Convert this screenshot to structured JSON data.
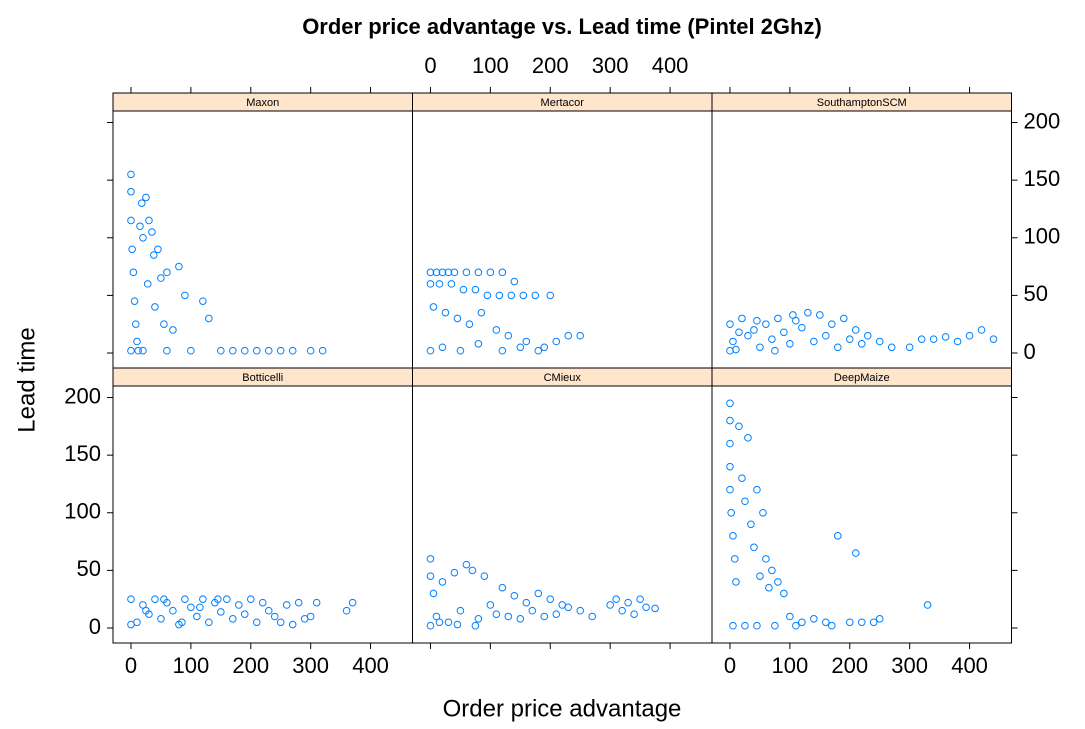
{
  "chart_data": {
    "type": "scatter",
    "title": "Order price advantage vs. Lead time (Pintel 2Ghz)",
    "x_label": "Order price advantage",
    "y_label": "Lead time",
    "xlim": [
      -30,
      470
    ],
    "ylim": [
      -13,
      210
    ],
    "xticks": [
      0,
      100,
      200,
      300,
      400
    ],
    "yticks": [
      0,
      50,
      100,
      150,
      200
    ],
    "color": "#0080ff",
    "panels": [
      {
        "name": "Maxon",
        "x": [
          0,
          0,
          0,
          2,
          4,
          6,
          8,
          10,
          12,
          15,
          18,
          20,
          25,
          28,
          30,
          35,
          38,
          40,
          45,
          50,
          55,
          60,
          70,
          80,
          90,
          100,
          120,
          130,
          150,
          170,
          190,
          210,
          230,
          250,
          270,
          300,
          320,
          0,
          20,
          60
        ],
        "y": [
          155,
          140,
          115,
          90,
          70,
          45,
          25,
          10,
          2,
          110,
          130,
          100,
          135,
          60,
          115,
          105,
          85,
          40,
          90,
          65,
          25,
          70,
          20,
          75,
          50,
          2,
          45,
          30,
          2,
          2,
          2,
          2,
          2,
          2,
          2,
          2,
          2,
          2,
          2,
          2
        ]
      },
      {
        "name": "Mertacor",
        "x": [
          0,
          10,
          20,
          30,
          40,
          60,
          80,
          100,
          120,
          140,
          0,
          15,
          35,
          55,
          75,
          95,
          115,
          135,
          155,
          175,
          200,
          5,
          25,
          45,
          65,
          85,
          110,
          130,
          160,
          190,
          0,
          20,
          50,
          80,
          120,
          150,
          180,
          210,
          230,
          250
        ],
        "y": [
          70,
          70,
          70,
          70,
          70,
          70,
          70,
          70,
          70,
          62,
          60,
          60,
          60,
          55,
          55,
          50,
          50,
          50,
          50,
          50,
          50,
          40,
          35,
          30,
          25,
          35,
          20,
          15,
          10,
          5,
          2,
          5,
          2,
          8,
          2,
          5,
          2,
          10,
          15,
          15
        ]
      },
      {
        "name": "SouthamptonSCM",
        "x": [
          0,
          5,
          10,
          20,
          30,
          40,
          50,
          60,
          70,
          80,
          90,
          100,
          110,
          120,
          130,
          140,
          150,
          160,
          170,
          180,
          190,
          200,
          210,
          220,
          230,
          250,
          270,
          300,
          320,
          340,
          360,
          380,
          400,
          420,
          440,
          0,
          15,
          45,
          75,
          105
        ],
        "y": [
          25,
          10,
          3,
          30,
          15,
          20,
          5,
          25,
          12,
          30,
          18,
          8,
          28,
          22,
          35,
          10,
          33,
          15,
          25,
          5,
          30,
          12,
          20,
          8,
          15,
          10,
          5,
          5,
          12,
          12,
          14,
          10,
          15,
          20,
          12,
          2,
          18,
          28,
          2,
          33
        ]
      },
      {
        "name": "Botticelli",
        "x": [
          0,
          10,
          20,
          30,
          40,
          50,
          60,
          70,
          80,
          90,
          100,
          110,
          120,
          130,
          140,
          150,
          160,
          170,
          180,
          190,
          200,
          210,
          220,
          230,
          240,
          250,
          260,
          270,
          280,
          290,
          300,
          310,
          360,
          370,
          0,
          25,
          55,
          85,
          115,
          145
        ],
        "y": [
          25,
          5,
          20,
          12,
          25,
          8,
          22,
          15,
          3,
          25,
          18,
          10,
          25,
          5,
          22,
          14,
          25,
          8,
          20,
          12,
          25,
          5,
          22,
          15,
          10,
          5,
          20,
          3,
          22,
          8,
          10,
          22,
          15,
          22,
          3,
          15,
          25,
          5,
          18,
          25
        ]
      },
      {
        "name": "CMieux",
        "x": [
          0,
          0,
          0,
          5,
          10,
          20,
          30,
          40,
          50,
          60,
          70,
          80,
          90,
          100,
          110,
          120,
          130,
          140,
          150,
          160,
          170,
          180,
          190,
          200,
          210,
          220,
          230,
          250,
          270,
          300,
          310,
          320,
          330,
          340,
          350,
          360,
          375,
          15,
          45,
          75
        ],
        "y": [
          60,
          45,
          2,
          30,
          10,
          40,
          5,
          48,
          15,
          55,
          50,
          8,
          45,
          20,
          12,
          35,
          10,
          28,
          8,
          22,
          15,
          30,
          10,
          25,
          12,
          20,
          18,
          15,
          10,
          20,
          25,
          15,
          22,
          12,
          25,
          18,
          17,
          5,
          3,
          2
        ]
      },
      {
        "name": "DeepMaize",
        "x": [
          0,
          0,
          0,
          0,
          0,
          2,
          5,
          8,
          10,
          15,
          20,
          25,
          30,
          35,
          40,
          45,
          50,
          55,
          60,
          65,
          70,
          80,
          90,
          100,
          120,
          140,
          160,
          180,
          200,
          210,
          220,
          240,
          250,
          330,
          5,
          25,
          45,
          75,
          110,
          170
        ],
        "y": [
          195,
          180,
          160,
          140,
          120,
          100,
          80,
          60,
          40,
          175,
          130,
          110,
          165,
          90,
          70,
          120,
          45,
          100,
          60,
          35,
          50,
          40,
          30,
          10,
          5,
          8,
          5,
          80,
          5,
          65,
          5,
          5,
          8,
          20,
          2,
          2,
          2,
          2,
          2,
          2
        ]
      }
    ]
  }
}
